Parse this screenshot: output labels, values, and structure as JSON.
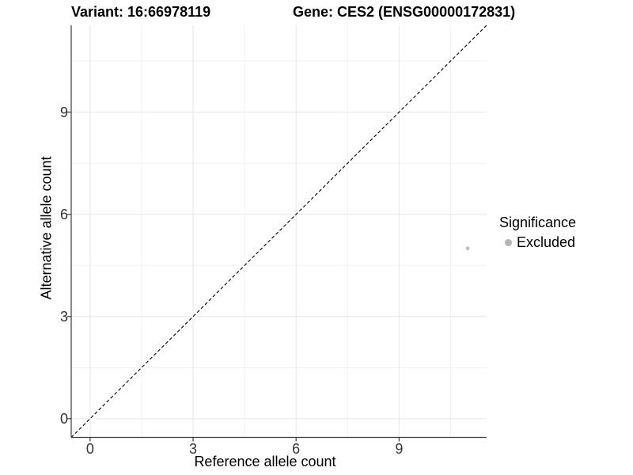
{
  "header": {
    "variant_title": "Variant: 16:66978119",
    "gene_title": "Gene: CES2 (ENSG00000172831)"
  },
  "axes": {
    "x_label": "Reference allele count",
    "y_label": "Alternative allele count"
  },
  "legend": {
    "title": "Significance",
    "items": [
      {
        "label": "Excluded",
        "color": "#b5b5b5"
      }
    ]
  },
  "chart_data": {
    "type": "scatter",
    "title_left": "Variant: 16:66978119",
    "title_right": "Gene: CES2 (ENSG00000172831)",
    "xlabel": "Reference allele count",
    "ylabel": "Alternative allele count",
    "xlim": [
      -0.55,
      11.55
    ],
    "ylim": [
      -0.55,
      11.55
    ],
    "x_ticks": [
      0,
      3,
      6,
      9
    ],
    "y_ticks": [
      0,
      3,
      6,
      9
    ],
    "x_minor_ticks": [
      1.5,
      4.5,
      7.5,
      10.5
    ],
    "y_minor_ticks": [
      1.5,
      4.5,
      7.5,
      10.5
    ],
    "grid": true,
    "legend_position": "right",
    "legend_title": "Significance",
    "series": [
      {
        "name": "Excluded",
        "color": "#bebebe",
        "points": [
          {
            "x": 11,
            "y": 5
          }
        ]
      }
    ],
    "identity_line": {
      "style": "dashed",
      "color": "#000000",
      "from": [
        -0.55,
        -0.55
      ],
      "to": [
        11.55,
        11.55
      ]
    }
  },
  "colors": {
    "background": "#ffffff",
    "grid_major": "#e6e6e6",
    "grid_minor": "#f2f2f2",
    "axis_line": "#3c3c3c",
    "tick_text": "#333333",
    "point": "#bebebe"
  }
}
